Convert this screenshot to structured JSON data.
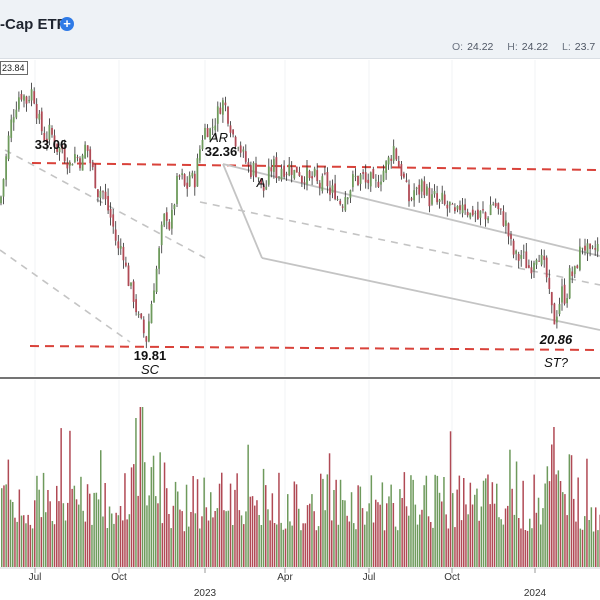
{
  "header": {
    "title": "-Cap ETF",
    "plus_icon": "plus-circle-icon",
    "ohlc": [
      {
        "label": "O:",
        "value": "24.22"
      },
      {
        "label": "H:",
        "value": "24.22"
      },
      {
        "label": "L:",
        "value": "23.7"
      }
    ]
  },
  "price_tag": "23.84",
  "colors": {
    "up": "#6e9a5c",
    "down": "#b04a55",
    "resistance": "#d9423a",
    "channel": "#c4c4c4"
  },
  "chart_data": {
    "type": "candlestick",
    "x_ticks": [
      "Jul",
      "Oct",
      "2023",
      "Apr",
      "Jul",
      "Oct",
      "2024"
    ],
    "annotations": [
      {
        "text": "33.06",
        "style": "bold"
      },
      {
        "text": "AR",
        "style": "italic"
      },
      {
        "text": "32.36",
        "style": "bold"
      },
      {
        "text": "A",
        "style": "italic"
      },
      {
        "text": "19.81",
        "style": "bold"
      },
      {
        "text": "SC",
        "style": "italic"
      },
      {
        "text": "20.86",
        "style": "bold-italic"
      },
      {
        "text": "ST?",
        "style": "italic"
      }
    ],
    "price_path": [
      [
        0,
        27.0
      ],
      [
        4,
        28.5
      ],
      [
        8,
        30.2
      ],
      [
        12,
        31.5
      ],
      [
        16,
        32.2
      ],
      [
        20,
        32.8
      ],
      [
        24,
        32.6
      ],
      [
        28,
        32.2
      ],
      [
        30,
        33.06
      ],
      [
        34,
        32.6
      ],
      [
        38,
        31.5
      ],
      [
        42,
        30.8
      ],
      [
        46,
        30.3
      ],
      [
        50,
        30.8
      ],
      [
        54,
        30.3
      ],
      [
        58,
        29.8
      ],
      [
        62,
        29.9
      ],
      [
        66,
        29.4
      ],
      [
        70,
        29.0
      ],
      [
        74,
        29.6
      ],
      [
        78,
        29.4
      ],
      [
        82,
        29.1
      ],
      [
        86,
        30.2
      ],
      [
        90,
        29.2
      ],
      [
        94,
        28.5
      ],
      [
        98,
        27.6
      ],
      [
        102,
        27.8
      ],
      [
        106,
        27.0
      ],
      [
        110,
        26.4
      ],
      [
        114,
        25.6
      ],
      [
        118,
        24.5
      ],
      [
        122,
        24.9
      ],
      [
        126,
        23.6
      ],
      [
        130,
        22.6
      ],
      [
        134,
        22.1
      ],
      [
        138,
        21.0
      ],
      [
        142,
        20.6
      ],
      [
        146,
        19.81
      ],
      [
        150,
        21.3
      ],
      [
        154,
        22.8
      ],
      [
        158,
        24.0
      ],
      [
        162,
        25.7
      ],
      [
        166,
        26.6
      ],
      [
        170,
        25.7
      ],
      [
        174,
        27.0
      ],
      [
        178,
        28.4
      ],
      [
        182,
        28.3
      ],
      [
        186,
        27.6
      ],
      [
        190,
        28.6
      ],
      [
        194,
        28.0
      ],
      [
        198,
        29.3
      ],
      [
        202,
        30.5
      ],
      [
        206,
        31.0
      ],
      [
        210,
        30.8
      ],
      [
        214,
        31.2
      ],
      [
        218,
        31.8
      ],
      [
        222,
        32.36
      ],
      [
        226,
        32.0
      ],
      [
        230,
        31.2
      ],
      [
        234,
        30.4
      ],
      [
        238,
        30.3
      ],
      [
        242,
        29.6
      ],
      [
        246,
        29.2
      ],
      [
        250,
        28.7
      ],
      [
        254,
        28.9
      ],
      [
        258,
        28.6
      ],
      [
        262,
        27.6
      ],
      [
        266,
        27.9
      ],
      [
        270,
        28.8
      ],
      [
        274,
        29.0
      ],
      [
        278,
        28.4
      ],
      [
        282,
        29.0
      ],
      [
        286,
        28.7
      ],
      [
        290,
        29.0
      ],
      [
        294,
        28.6
      ],
      [
        298,
        28.9
      ],
      [
        302,
        28.3
      ],
      [
        306,
        28.6
      ],
      [
        310,
        28.1
      ],
      [
        314,
        28.5
      ],
      [
        318,
        27.9
      ],
      [
        322,
        28.0
      ],
      [
        326,
        28.4
      ],
      [
        330,
        27.4
      ],
      [
        334,
        27.8
      ],
      [
        338,
        27.2
      ],
      [
        342,
        27.0
      ],
      [
        346,
        27.6
      ],
      [
        350,
        27.8
      ],
      [
        354,
        28.4
      ],
      [
        358,
        28.2
      ],
      [
        362,
        28.5
      ],
      [
        366,
        28.0
      ],
      [
        370,
        28.3
      ],
      [
        374,
        27.8
      ],
      [
        378,
        28.2
      ],
      [
        382,
        28.6
      ],
      [
        386,
        29.0
      ],
      [
        390,
        29.4
      ],
      [
        394,
        30.0
      ],
      [
        398,
        29.1
      ],
      [
        402,
        28.6
      ],
      [
        406,
        27.8
      ],
      [
        410,
        27.0
      ],
      [
        414,
        27.7
      ],
      [
        418,
        27.5
      ],
      [
        422,
        28.1
      ],
      [
        426,
        27.7
      ],
      [
        430,
        27.1
      ],
      [
        434,
        27.4
      ],
      [
        438,
        26.9
      ],
      [
        442,
        27.2
      ],
      [
        446,
        26.7
      ],
      [
        450,
        26.9
      ],
      [
        454,
        26.3
      ],
      [
        458,
        26.5
      ],
      [
        462,
        27.2
      ],
      [
        466,
        26.8
      ],
      [
        470,
        26.4
      ],
      [
        474,
        26.7
      ],
      [
        478,
        26.2
      ],
      [
        482,
        26.6
      ],
      [
        486,
        26.1
      ],
      [
        490,
        26.9
      ],
      [
        494,
        27.1
      ],
      [
        498,
        26.6
      ],
      [
        502,
        26.3
      ],
      [
        506,
        25.9
      ],
      [
        510,
        25.0
      ],
      [
        514,
        24.3
      ],
      [
        518,
        24.1
      ],
      [
        522,
        24.4
      ],
      [
        526,
        23.9
      ],
      [
        530,
        23.6
      ],
      [
        534,
        24.2
      ],
      [
        538,
        24.6
      ],
      [
        542,
        23.9
      ],
      [
        546,
        23.4
      ],
      [
        550,
        21.8
      ],
      [
        554,
        20.86
      ],
      [
        558,
        21.6
      ],
      [
        562,
        22.4
      ],
      [
        566,
        22.0
      ],
      [
        570,
        23.4
      ],
      [
        574,
        23.2
      ],
      [
        578,
        24.1
      ],
      [
        582,
        24.9
      ],
      [
        586,
        24.7
      ],
      [
        590,
        24.2
      ],
      [
        594,
        24.5
      ],
      [
        598,
        24.8
      ],
      [
        600,
        24.6
      ]
    ],
    "price_range": [
      18.0,
      34.5
    ]
  }
}
